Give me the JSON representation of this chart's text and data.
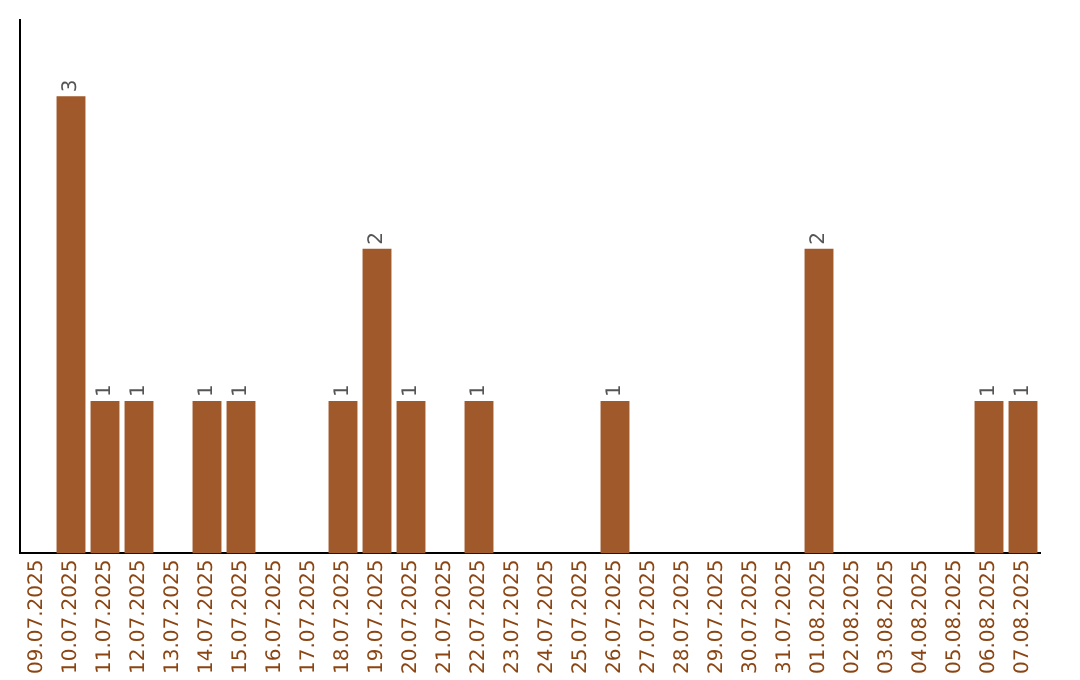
{
  "chart_data": {
    "type": "bar",
    "categories": [
      "09.07.2025",
      "10.07.2025",
      "11.07.2025",
      "12.07.2025",
      "13.07.2025",
      "14.07.2025",
      "15.07.2025",
      "16.07.2025",
      "17.07.2025",
      "18.07.2025",
      "19.07.2025",
      "20.07.2025",
      "21.07.2025",
      "22.07.2025",
      "23.07.2025",
      "24.07.2025",
      "25.07.2025",
      "26.07.2025",
      "27.07.2025",
      "28.07.2025",
      "29.07.2025",
      "30.07.2025",
      "31.07.2025",
      "01.08.2025",
      "02.08.2025",
      "03.08.2025",
      "04.08.2025",
      "05.08.2025",
      "06.08.2025",
      "07.08.2025"
    ],
    "values": [
      0,
      3,
      1,
      1,
      0,
      1,
      1,
      0,
      0,
      1,
      2,
      1,
      0,
      1,
      0,
      0,
      0,
      1,
      0,
      0,
      0,
      0,
      0,
      2,
      0,
      0,
      0,
      0,
      1,
      1
    ],
    "value_labels": [
      null,
      "3",
      "1",
      "1",
      null,
      "1",
      "1",
      null,
      null,
      "1",
      "2",
      "1",
      null,
      "1",
      null,
      null,
      null,
      "1",
      null,
      null,
      null,
      null,
      null,
      "2",
      null,
      null,
      null,
      null,
      "1",
      "1"
    ],
    "color": "#a0592a",
    "grid": false,
    "legend": false,
    "tick_labels": "x"
  }
}
